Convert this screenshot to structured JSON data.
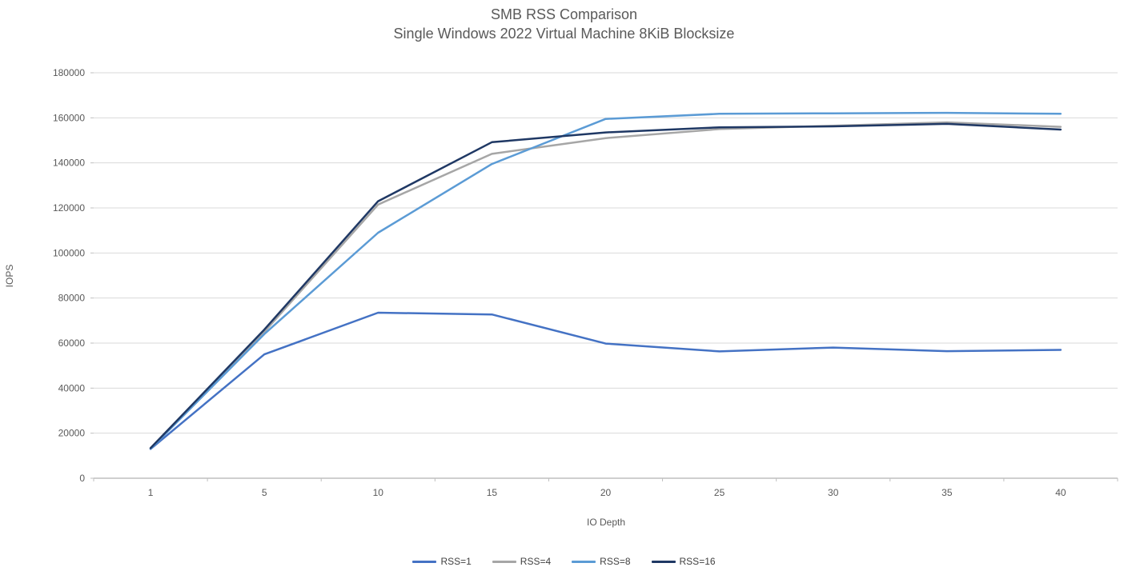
{
  "chart": {
    "title_line1": "SMB RSS Comparison",
    "title_line2": "Single Windows 2022 Virtual Machine 8KiB Blocksize",
    "xlabel": "IO Depth",
    "ylabel": "IOPS"
  },
  "chart_data": {
    "type": "line",
    "title": "SMB RSS Comparison",
    "subtitle": "Single Windows 2022 Virtual Machine 8KiB Blocksize",
    "xlabel": "IO Depth",
    "ylabel": "IOPS",
    "categories": [
      1,
      5,
      10,
      15,
      20,
      25,
      30,
      35,
      40
    ],
    "y_ticks": [
      0,
      20000,
      40000,
      60000,
      80000,
      100000,
      120000,
      140000,
      160000,
      180000
    ],
    "ylim": [
      0,
      180000
    ],
    "grid": true,
    "legend_position": "bottom",
    "series": [
      {
        "name": "RSS=1",
        "color": "#4472C4",
        "values": [
          13000,
          55000,
          73500,
          72700,
          59800,
          56300,
          58000,
          56400,
          57000
        ]
      },
      {
        "name": "RSS=4",
        "color": "#A6A6A6",
        "values": [
          13300,
          65000,
          121500,
          144000,
          151000,
          155000,
          156500,
          158000,
          156000
        ]
      },
      {
        "name": "RSS=8",
        "color": "#5B9BD5",
        "values": [
          13100,
          64000,
          109000,
          139500,
          159500,
          161800,
          162000,
          162200,
          161800
        ]
      },
      {
        "name": "RSS=16",
        "color": "#1F3864",
        "values": [
          13400,
          66000,
          123000,
          149200,
          153500,
          155800,
          156200,
          157300,
          154800
        ]
      }
    ]
  },
  "style_colors": {
    "gridline": "#D9D9D9",
    "axis_line": "#BFBFBF",
    "tick_text": "#595959"
  }
}
